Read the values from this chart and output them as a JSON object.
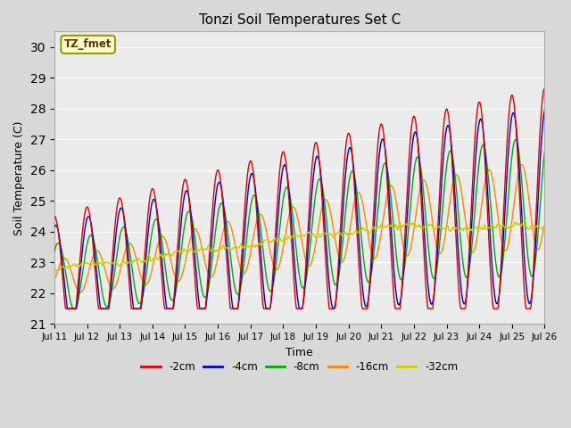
{
  "title": "Tonzi Soil Temperatures Set C",
  "xlabel": "Time",
  "ylabel": "Soil Temperature (C)",
  "ylim": [
    21.0,
    30.5
  ],
  "yticks": [
    21.0,
    22.0,
    23.0,
    24.0,
    25.0,
    26.0,
    27.0,
    28.0,
    29.0,
    30.0
  ],
  "xtick_labels": [
    "Jul 11",
    "Jul 12",
    "Jul 13",
    "Jul 14",
    "Jul 15",
    "Jul 16",
    "Jul 17",
    "Jul 18",
    "Jul 19",
    "Jul 20",
    "Jul 21",
    "Jul 22",
    "Jul 23",
    "Jul 24",
    "Jul 25",
    "Jul 26"
  ],
  "series_colors": {
    "-2cm": "#dd0000",
    "-4cm": "#0000cc",
    "-8cm": "#00aa00",
    "-16cm": "#ff8800",
    "-32cm": "#cccc00"
  },
  "legend_label": "TZ_fmet",
  "legend_box_color": "#ffffcc",
  "legend_box_edge": "#999900",
  "bg_color": "#d8d8d8",
  "plot_bg": "#ebebeb",
  "linewidth": 1.0
}
